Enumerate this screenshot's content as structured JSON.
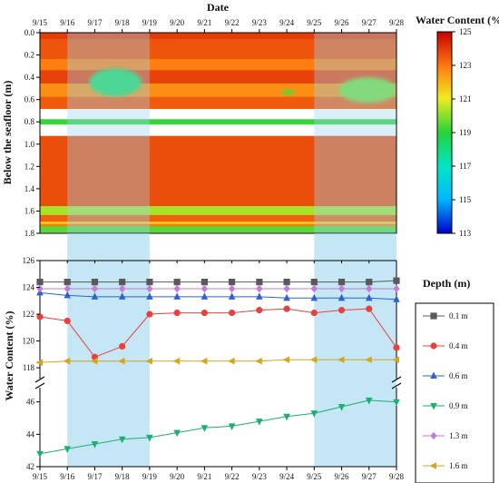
{
  "chart_data": [
    {
      "type": "heatmap",
      "title": "Date",
      "xlabel": "Date",
      "ylabel": "Below the seafloor (m)",
      "x_ticks": [
        "9/15",
        "9/16",
        "9/17",
        "9/18",
        "9/19",
        "9/20",
        "9/21",
        "9/22",
        "9/23",
        "9/24",
        "9/25",
        "9/26",
        "9/27",
        "9/28"
      ],
      "y_ticks": [
        "0.0",
        "0.2",
        "0.4",
        "0.6",
        "0.8",
        "1.0",
        "1.2",
        "1.4",
        "1.6",
        "1.8"
      ],
      "ylim": [
        1.8,
        0.0
      ],
      "colorbar": {
        "label": "Water Content (%)",
        "ticks": [
          "125",
          "123",
          "121",
          "119",
          "117",
          "115",
          "113"
        ],
        "range": [
          113,
          125
        ]
      },
      "shaded_date_ranges": [
        [
          "9/16",
          "9/19"
        ],
        [
          "9/25",
          "9/28"
        ]
      ],
      "bands": [
        {
          "depth": [
            0.0,
            0.06
          ],
          "value": 124.0
        },
        {
          "depth": [
            0.06,
            0.24
          ],
          "value": 123.6
        },
        {
          "depth": [
            0.24,
            0.34
          ],
          "value": 122.9
        },
        {
          "depth": [
            0.34,
            0.46
          ],
          "value": 123.9
        },
        {
          "depth": [
            0.46,
            0.58
          ],
          "value": 122.6
        },
        {
          "depth": [
            0.58,
            0.68
          ],
          "value": 123.5
        },
        {
          "depth": [
            0.78,
            0.82
          ],
          "value": 119.2
        },
        {
          "depth": [
            0.93,
            1.56
          ],
          "value": 123.7
        },
        {
          "depth": [
            1.56,
            1.64
          ],
          "value": 120.3
        },
        {
          "depth": [
            1.64,
            1.7
          ],
          "value": 123.4
        },
        {
          "depth": [
            1.7,
            1.72
          ],
          "value": 121.5
        },
        {
          "depth": [
            1.72,
            1.74
          ],
          "value": 123.0
        },
        {
          "depth": [
            1.74,
            1.79
          ],
          "value": 119.5
        }
      ],
      "anomalies": [
        {
          "date": [
            "9/16.8",
            "9/18.7"
          ],
          "depth": [
            0.32,
            0.57
          ],
          "value": 118.5
        },
        {
          "date": [
            "9/23.8",
            "9/24.3"
          ],
          "depth": [
            0.51,
            0.56
          ],
          "value": 119.5
        },
        {
          "date": [
            "9/25.9",
            "9/28"
          ],
          "depth": [
            0.4,
            0.63
          ],
          "value": 119.8
        }
      ]
    },
    {
      "type": "line",
      "xlabel": "",
      "ylabel": "Water Content (%)",
      "legend_title": "Depth (m)",
      "legend_position": "right",
      "x": [
        "9/15",
        "9/16",
        "9/17",
        "9/18",
        "9/19",
        "9/20",
        "9/21",
        "9/22",
        "9/23",
        "9/24",
        "9/25",
        "9/26",
        "9/27",
        "9/28"
      ],
      "y_ticks_upper": [
        "118",
        "120",
        "122",
        "124",
        "126"
      ],
      "y_ticks_lower": [
        "42",
        "44",
        "46"
      ],
      "ylim_upper": [
        117.6,
        126
      ],
      "ylim_lower": [
        42,
        46.6
      ],
      "axis_break": true,
      "shaded_date_ranges": [
        [
          "9/16",
          "9/19"
        ],
        [
          "9/25",
          "9/28"
        ]
      ],
      "series": [
        {
          "name": "0.1 m",
          "color": "#595959",
          "marker": "square",
          "values": [
            124.4,
            124.4,
            124.4,
            124.4,
            124.4,
            124.4,
            124.4,
            124.4,
            124.4,
            124.4,
            124.4,
            124.4,
            124.4,
            124.5
          ]
        },
        {
          "name": "0.4 m",
          "color": "#e8413d",
          "marker": "circle",
          "values": [
            121.8,
            121.5,
            118.8,
            119.6,
            122.0,
            122.1,
            122.1,
            122.1,
            122.3,
            122.4,
            122.1,
            122.3,
            122.4,
            119.5
          ]
        },
        {
          "name": "0.6 m",
          "color": "#2e62d0",
          "marker": "triangle-up",
          "values": [
            123.6,
            123.4,
            123.3,
            123.3,
            123.3,
            123.3,
            123.3,
            123.3,
            123.3,
            123.2,
            123.2,
            123.2,
            123.2,
            123.1
          ]
        },
        {
          "name": "0.9 m",
          "color": "#1fae72",
          "marker": "triangle-down",
          "values": [
            42.8,
            43.1,
            43.4,
            43.7,
            43.8,
            44.1,
            44.4,
            44.5,
            44.8,
            45.1,
            45.3,
            45.7,
            46.1,
            46.0
          ]
        },
        {
          "name": "1.3 m",
          "color": "#c57bd8",
          "marker": "diamond",
          "values": [
            123.9,
            123.9,
            123.9,
            123.9,
            123.9,
            123.9,
            123.9,
            123.9,
            123.9,
            123.9,
            123.9,
            123.9,
            123.9,
            123.9
          ]
        },
        {
          "name": "1.6 m",
          "color": "#d6a51e",
          "marker": "triangle-left",
          "values": [
            118.4,
            118.5,
            118.5,
            118.5,
            118.5,
            118.5,
            118.5,
            118.5,
            118.5,
            118.6,
            118.6,
            118.6,
            118.6,
            118.6
          ]
        }
      ]
    }
  ]
}
